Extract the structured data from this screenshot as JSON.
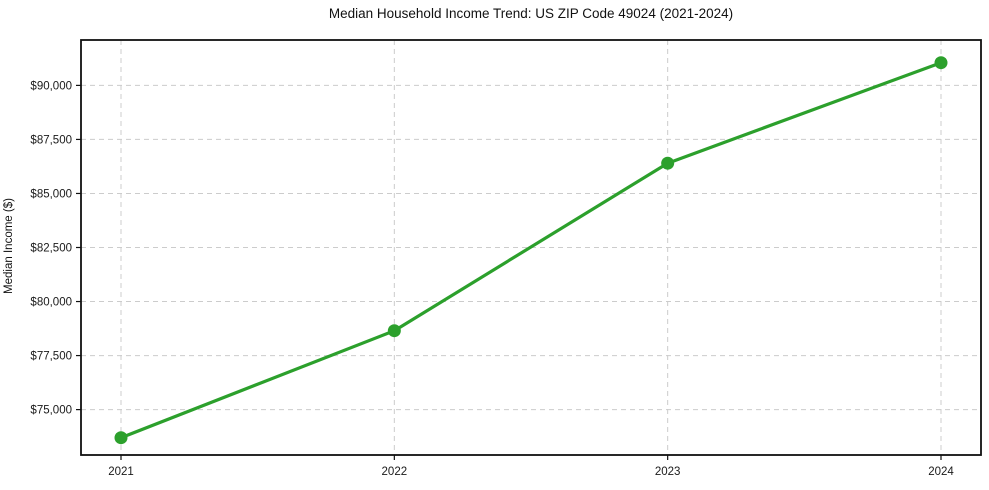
{
  "chart_data": {
    "type": "line",
    "title": "Median Household Income Trend: US ZIP Code 49024 (2021-2024)",
    "xlabel": "",
    "ylabel": "Median Income ($)",
    "x": [
      2021,
      2022,
      2023,
      2024
    ],
    "x_tick_labels": [
      "2021",
      "2022",
      "2023",
      "2024"
    ],
    "series": [
      {
        "name": "Median Household Income",
        "values": [
          73700,
          78650,
          86400,
          91050
        ]
      }
    ],
    "y_ticks": [
      75000,
      77500,
      80000,
      82500,
      85000,
      87500,
      90000
    ],
    "y_tick_labels": [
      "$75,000",
      "$77,500",
      "$80,000",
      "$82,500",
      "$85,000",
      "$87,500",
      "$90,000"
    ],
    "ylim": [
      72900,
      92100
    ],
    "grid": true,
    "grid_style": "dashed",
    "legend": false,
    "colors": {
      "line": "#2ca02c",
      "marker": "#2ca02c",
      "grid": "#cccccc",
      "frame": "#111111",
      "text": "#1a1a1a",
      "background": "#ffffff"
    }
  }
}
